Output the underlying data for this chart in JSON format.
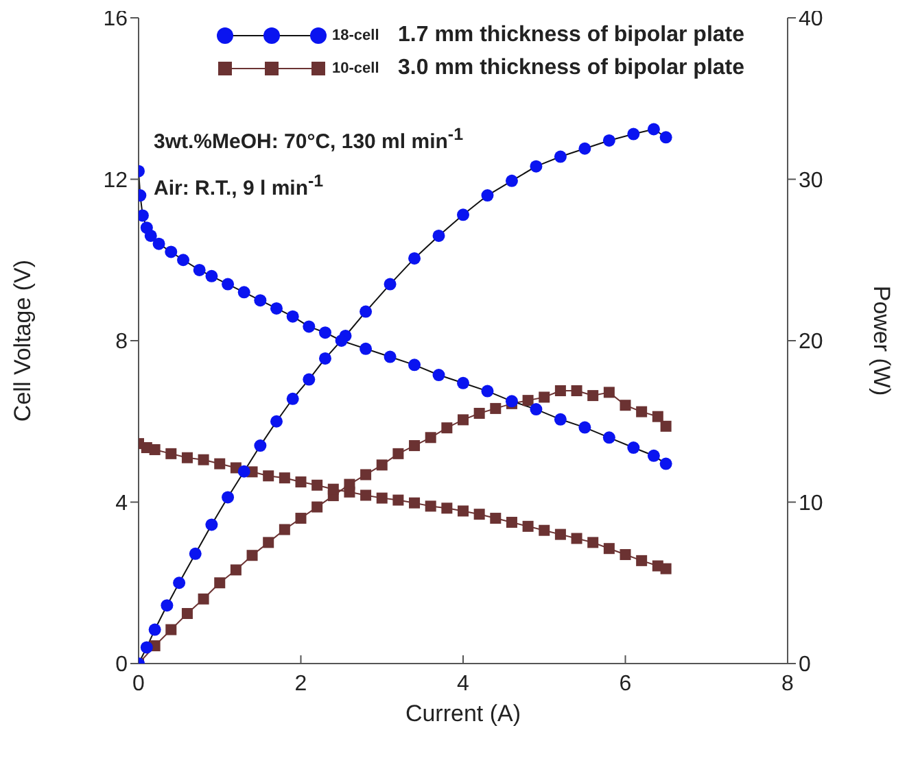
{
  "chart_data": {
    "type": "line",
    "xlabel": "Current (A)",
    "ylabel": "Cell Voltage (V)",
    "y2label": "Power (W)",
    "xlim": [
      0,
      8
    ],
    "xticks": [
      0,
      2,
      4,
      6,
      8
    ],
    "ylim": [
      0,
      16
    ],
    "yticks": [
      0,
      4,
      8,
      12,
      16
    ],
    "y2lim": [
      0,
      40
    ],
    "y2ticks": [
      0,
      10,
      20,
      30,
      40
    ],
    "grid": false,
    "legend": "top",
    "line_style": "solid",
    "annotations": [
      "1.7 mm thickness of bipolar plate",
      "3.0 mm thickness of bipolar plate",
      "3wt.%MeOH: 70°C, 130 ml min$^{-1}$",
      "Air: R.T., 9 l min$^{-1}$"
    ],
    "series": [
      {
        "name": "18-cell",
        "color": "#0a14f0",
        "marker": "circle",
        "x": [
          0,
          0.02,
          0.05,
          0.1,
          0.15,
          0.25,
          0.4,
          0.55,
          0.75,
          0.9,
          1.1,
          1.3,
          1.5,
          1.7,
          1.9,
          2.1,
          2.3,
          2.5,
          2.8,
          3.1,
          3.4,
          3.7,
          4.0,
          4.3,
          4.6,
          4.9,
          5.2,
          5.5,
          5.8,
          6.1,
          6.35,
          6.5
        ],
        "values": [
          12.2,
          11.6,
          11.1,
          10.8,
          10.6,
          10.4,
          10.2,
          10.0,
          9.75,
          9.6,
          9.4,
          9.2,
          9.0,
          8.8,
          8.6,
          8.35,
          8.2,
          8.0,
          7.8,
          7.6,
          7.4,
          7.15,
          6.95,
          6.75,
          6.5,
          6.3,
          6.05,
          5.85,
          5.6,
          5.35,
          5.15,
          4.95
        ]
      },
      {
        "color": "#0a14f0",
        "marker": "circle",
        "axis": "y2",
        "x": [
          0,
          0.1,
          0.2,
          0.35,
          0.5,
          0.7,
          0.9,
          1.1,
          1.3,
          1.5,
          1.7,
          1.9,
          2.1,
          2.3,
          2.55,
          2.8,
          3.1,
          3.4,
          3.7,
          4.0,
          4.3,
          4.6,
          4.9,
          5.2,
          5.5,
          5.8,
          6.1,
          6.35,
          6.5
        ],
        "values": [
          0,
          1.0,
          2.1,
          3.6,
          5.0,
          6.8,
          8.6,
          10.3,
          11.9,
          13.5,
          15.0,
          16.4,
          17.6,
          18.9,
          20.3,
          21.8,
          23.5,
          25.1,
          26.5,
          27.8,
          29.0,
          29.9,
          30.8,
          31.4,
          31.9,
          32.4,
          32.8,
          33.1,
          32.6
        ]
      },
      {
        "name": "10-cell",
        "color": "#6b3232",
        "marker": "square",
        "x": [
          0,
          0.1,
          0.2,
          0.4,
          0.6,
          0.8,
          1.0,
          1.2,
          1.4,
          1.6,
          1.8,
          2.0,
          2.2,
          2.4,
          2.6,
          2.8,
          3.0,
          3.2,
          3.4,
          3.6,
          3.8,
          4.0,
          4.2,
          4.4,
          4.6,
          4.8,
          5.0,
          5.2,
          5.4,
          5.6,
          5.8,
          6.0,
          6.2,
          6.4,
          6.5
        ],
        "values": [
          5.45,
          5.35,
          5.3,
          5.2,
          5.1,
          5.05,
          4.95,
          4.85,
          4.75,
          4.65,
          4.6,
          4.5,
          4.42,
          4.32,
          4.25,
          4.17,
          4.1,
          4.05,
          3.98,
          3.9,
          3.85,
          3.78,
          3.7,
          3.6,
          3.5,
          3.4,
          3.3,
          3.2,
          3.1,
          3.0,
          2.85,
          2.7,
          2.55,
          2.42,
          2.35
        ]
      },
      {
        "color": "#6b3232",
        "marker": "square",
        "axis": "y2",
        "x": [
          0,
          0.2,
          0.4,
          0.6,
          0.8,
          1.0,
          1.2,
          1.4,
          1.6,
          1.8,
          2.0,
          2.2,
          2.4,
          2.6,
          2.8,
          3.0,
          3.2,
          3.4,
          3.6,
          3.8,
          4.0,
          4.2,
          4.4,
          4.6,
          4.8,
          5.0,
          5.2,
          5.4,
          5.6,
          5.8,
          6.0,
          6.2,
          6.4,
          6.5
        ],
        "values": [
          0,
          1.1,
          2.1,
          3.1,
          4.0,
          5.0,
          5.8,
          6.7,
          7.5,
          8.3,
          9.0,
          9.7,
          10.4,
          11.1,
          11.7,
          12.3,
          13.0,
          13.5,
          14.0,
          14.6,
          15.1,
          15.5,
          15.8,
          16.1,
          16.3,
          16.5,
          16.9,
          16.9,
          16.6,
          16.8,
          16.0,
          15.6,
          15.3,
          14.7
        ]
      }
    ]
  }
}
